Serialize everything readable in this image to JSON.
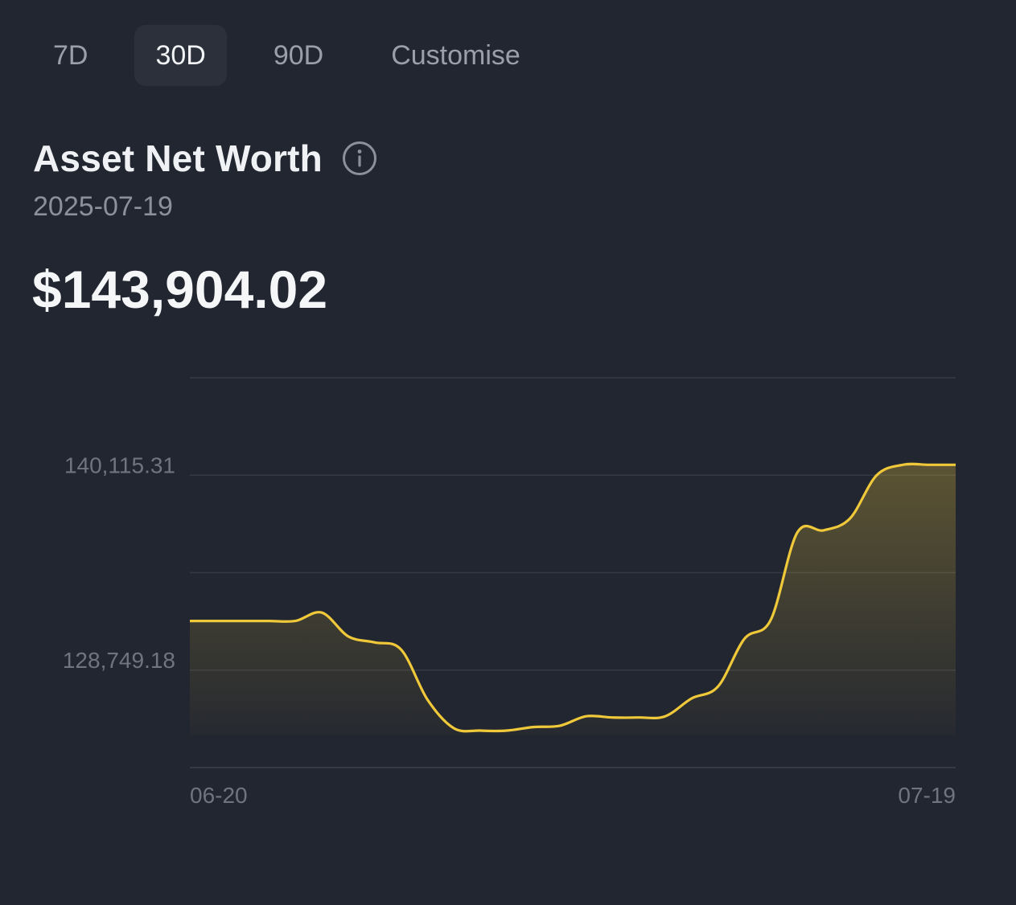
{
  "tabs": [
    {
      "label": "7D",
      "active": false
    },
    {
      "label": "30D",
      "active": true
    },
    {
      "label": "90D",
      "active": false
    },
    {
      "label": "Customise",
      "active": false
    }
  ],
  "header": {
    "title": "Asset Net Worth",
    "info_icon": "info-circle-icon",
    "date": "2025-07-19",
    "value": "$143,904.02"
  },
  "colors": {
    "background": "#222630",
    "line": "#f0c93a",
    "grid": "#343a45",
    "muted_text": "#6f7580"
  },
  "chart_data": {
    "type": "area",
    "title": "",
    "xlabel": "",
    "ylabel": "",
    "x_tick_labels": [
      "06-20",
      "07-19"
    ],
    "y_tick_labels": [
      "140,115.31",
      "128,749.18"
    ],
    "ylim": [
      118800,
      151500
    ],
    "grid": true,
    "series": [
      {
        "x": [
          "06-20",
          "06-21",
          "06-22",
          "06-23",
          "06-24",
          "06-25",
          "06-26",
          "06-27",
          "06-28",
          "06-29",
          "06-30",
          "07-01",
          "07-02",
          "07-03",
          "07-04",
          "07-05",
          "07-06",
          "07-07",
          "07-08",
          "07-09",
          "07-10",
          "07-11",
          "07-12",
          "07-13",
          "07-14",
          "07-15",
          "07-16",
          "07-17",
          "07-18",
          "07-19"
        ],
        "values": [
          131100,
          131100,
          131100,
          131100,
          131100,
          131800,
          129800,
          129300,
          128700,
          124500,
          122100,
          121900,
          121900,
          122200,
          122300,
          123100,
          123000,
          123000,
          123100,
          124600,
          125600,
          129600,
          131200,
          138500,
          138700,
          139700,
          143300,
          144200,
          144200,
          144200
        ]
      }
    ]
  }
}
